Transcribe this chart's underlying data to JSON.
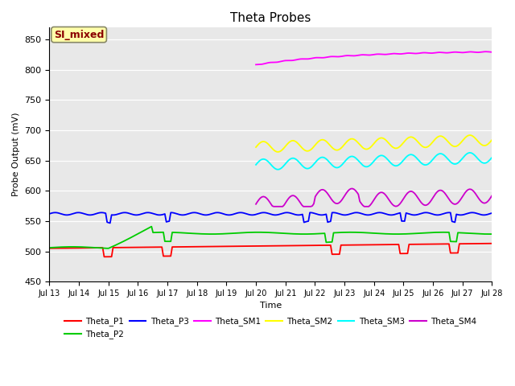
{
  "title": "Theta Probes",
  "xlabel": "Time",
  "ylabel": "Probe Output (mV)",
  "ylim": [
    450,
    870
  ],
  "annotation_text": "SI_mixed",
  "annotation_color": "#8B0000",
  "annotation_bg": "#FFFFAA",
  "bg_color": "#E8E8E8",
  "x_tick_labels": [
    "Jul 13",
    "Jul 14",
    "Jul 15",
    "Jul 16",
    "Jul 17",
    "Jul 18",
    "Jul 19",
    "Jul 20",
    "Jul 21",
    "Jul 22",
    "Jul 23",
    "Jul 24",
    "Jul 25",
    "Jul 26",
    "Jul 27",
    "Jul 28"
  ],
  "legend_order": [
    "Theta_P1",
    "Theta_P2",
    "Theta_P3",
    "Theta_SM1",
    "Theta_SM2",
    "Theta_SM3",
    "Theta_SM4"
  ],
  "series": {
    "Theta_P1": {
      "color": "#FF0000"
    },
    "Theta_P2": {
      "color": "#00CC00"
    },
    "Theta_P3": {
      "color": "#0000FF"
    },
    "Theta_SM1": {
      "color": "#FF00FF"
    },
    "Theta_SM2": {
      "color": "#FFFF00"
    },
    "Theta_SM3": {
      "color": "#00FFFF"
    },
    "Theta_SM4": {
      "color": "#CC00CC"
    }
  }
}
